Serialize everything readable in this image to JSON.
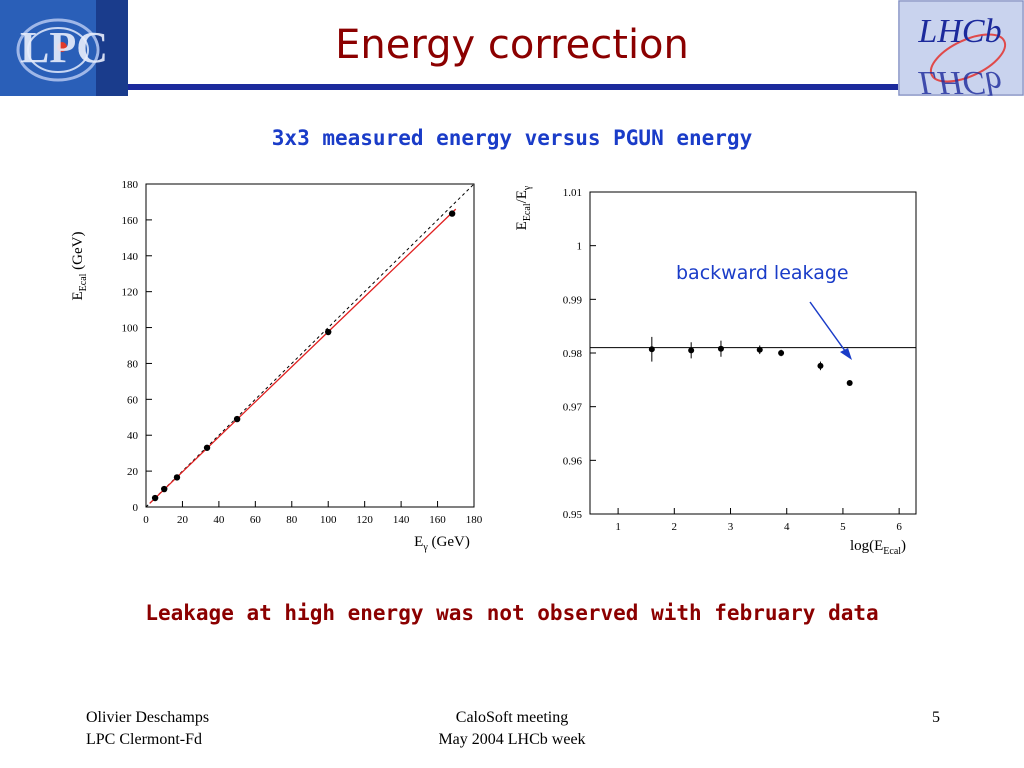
{
  "slide": {
    "title": "Energy correction",
    "subtitle": "3x3 measured energy versus PGUN energy",
    "conclusion": "Leakage at high energy was not observed with february data",
    "annotation": "backward leakage",
    "page_number": "5"
  },
  "footer": {
    "left_line1": "Olivier Deschamps",
    "left_line2": "LPC Clermont-Fd",
    "center_line1": "CaloSoft meeting",
    "center_line2": "May 2004 LHCb week"
  },
  "logos": {
    "left_text": "LPC",
    "right_text": "LHCb"
  },
  "colors": {
    "title": "#8b0000",
    "subtitle": "#1a3cc8",
    "header_line": "#1c2a9c",
    "fit_line": "#e02020"
  },
  "chart_data": [
    {
      "type": "scatter",
      "x_label_main": "E",
      "x_label_sub": "γ",
      "x_label_unit": " (GeV)",
      "y_label_main": "E",
      "y_label_sub": "Ecal",
      "y_label_unit": " (GeV)",
      "xlim": [
        0,
        180
      ],
      "ylim": [
        0,
        180
      ],
      "x_ticks": [
        0,
        20,
        40,
        60,
        80,
        100,
        120,
        140,
        160,
        180
      ],
      "y_ticks": [
        0,
        20,
        40,
        60,
        80,
        100,
        120,
        140,
        160,
        180
      ],
      "points": [
        {
          "x": 5,
          "y": 5
        },
        {
          "x": 10,
          "y": 10
        },
        {
          "x": 17,
          "y": 16.5
        },
        {
          "x": 33.5,
          "y": 33
        },
        {
          "x": 50,
          "y": 49
        },
        {
          "x": 100,
          "y": 97.5
        },
        {
          "x": 168,
          "y": 163.5
        }
      ],
      "diagonal_line": {
        "x1": 0,
        "x2": 180,
        "y1": 0,
        "y2": 180,
        "style": "dashed"
      },
      "fit_line": {
        "x1": 2,
        "x2": 170,
        "y1": 2,
        "y2": 166
      }
    },
    {
      "type": "scatter",
      "x_label_main": "log(E",
      "x_label_sub": "Ecal",
      "x_label_unit": ")",
      "y_label_main": "E",
      "y_label_sub1": "Ecal",
      "y_label_mid": "/E",
      "y_label_sub2": "γ",
      "xlim": [
        0.5,
        6.3
      ],
      "ylim": [
        0.95,
        1.01
      ],
      "x_ticks": [
        1,
        2,
        3,
        4,
        5,
        6
      ],
      "y_ticks": [
        0.95,
        0.96,
        0.97,
        0.98,
        0.99,
        1,
        1.01
      ],
      "points": [
        {
          "x": 1.6,
          "y": 0.9807,
          "err": 0.0023
        },
        {
          "x": 2.3,
          "y": 0.9805,
          "err": 0.0015
        },
        {
          "x": 2.83,
          "y": 0.9808,
          "err": 0.0015
        },
        {
          "x": 3.52,
          "y": 0.9806,
          "err": 0.0008
        },
        {
          "x": 3.9,
          "y": 0.98,
          "err": 0.0006
        },
        {
          "x": 4.6,
          "y": 0.9776,
          "err": 0.0008
        },
        {
          "x": 5.12,
          "y": 0.9744,
          "err": 0.0004
        }
      ],
      "reference_line": {
        "y": 0.981
      }
    }
  ]
}
